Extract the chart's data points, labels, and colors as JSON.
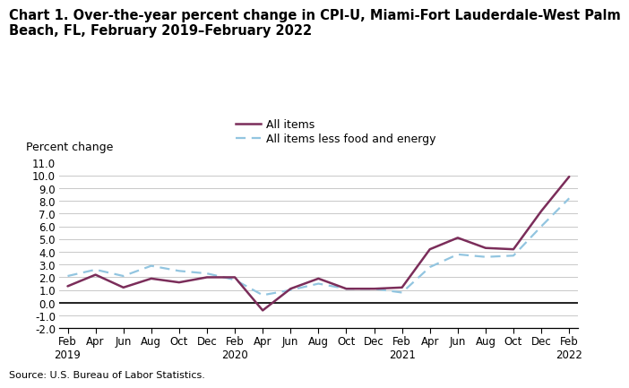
{
  "title_line1": "Chart 1. Over-the-year percent change in CPI-U, Miami-Fort Lauderdale-West Palm",
  "title_line2": "Beach, FL, February 2019–February 2022",
  "ylabel": "Percent change",
  "source": "Source: U.S. Bureau of Labor Statistics.",
  "ylim": [
    -2.0,
    11.0
  ],
  "yticks": [
    -2.0,
    -1.0,
    0.0,
    1.0,
    2.0,
    3.0,
    4.0,
    5.0,
    6.0,
    7.0,
    8.0,
    9.0,
    10.0,
    11.0
  ],
  "all_items_label": "All items",
  "core_label": "All items less food and energy",
  "all_items_color": "#7B2D5A",
  "core_color": "#92C5E0",
  "all_items_linewidth": 1.8,
  "core_linewidth": 1.6,
  "x_labels": [
    "Feb\n2019",
    "Apr",
    "Jun",
    "Aug",
    "Oct",
    "Dec",
    "Feb\n2020",
    "Apr",
    "Jun",
    "Aug",
    "Oct",
    "Dec",
    "Feb\n2021",
    "Apr",
    "Jun",
    "Aug",
    "Oct",
    "Dec",
    "Feb\n2022"
  ],
  "all_items": [
    1.3,
    2.2,
    1.2,
    1.9,
    1.6,
    2.0,
    2.0,
    -0.6,
    1.1,
    1.9,
    1.1,
    1.1,
    1.2,
    4.2,
    5.1,
    4.3,
    4.2,
    7.2,
    9.9
  ],
  "core": [
    2.1,
    2.6,
    2.1,
    2.9,
    2.5,
    2.3,
    1.8,
    0.6,
    1.0,
    1.5,
    1.1,
    1.1,
    0.8,
    2.8,
    3.8,
    3.6,
    3.7,
    6.0,
    8.2
  ],
  "background_color": "#ffffff",
  "grid_color": "#c8c8c8",
  "title_fontsize": 10.5,
  "label_fontsize": 9,
  "tick_fontsize": 8.5
}
